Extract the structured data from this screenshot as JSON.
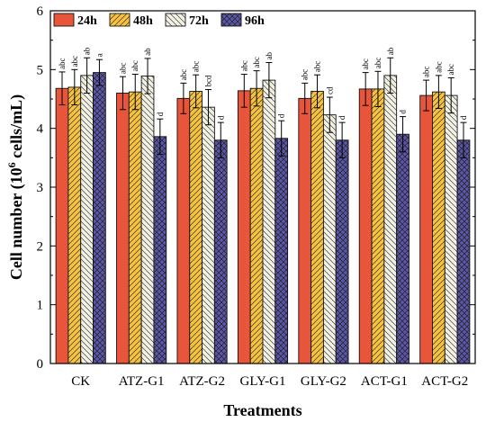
{
  "chart_data": {
    "type": "bar",
    "title": "",
    "xlabel": "Treatments",
    "ylabel_main": "Cell number (10",
    "ylabel_sup": "6",
    "ylabel_tail": " cells/mL)",
    "ylim": [
      0,
      6
    ],
    "yticks": [
      "0",
      "1",
      "2",
      "3",
      "4",
      "5",
      "6"
    ],
    "categories": [
      "CK",
      "ATZ-G1",
      "ATZ-G2",
      "GLY-G1",
      "GLY-G2",
      "ACT-G1",
      "ACT-G2"
    ],
    "legend_position": "top-left",
    "series": [
      {
        "name": "24h",
        "color": "#e8553a",
        "pattern": "solid",
        "values": [
          4.68,
          4.6,
          4.51,
          4.64,
          4.51,
          4.67,
          4.56
        ],
        "errors": [
          0.28,
          0.28,
          0.26,
          0.28,
          0.26,
          0.28,
          0.26
        ],
        "labels": [
          "abc",
          "abc",
          "abc",
          "abc",
          "abc",
          "abc",
          "abc"
        ]
      },
      {
        "name": "48h",
        "color": "#f7c33e",
        "pattern": "hatch-right",
        "values": [
          4.7,
          4.62,
          4.63,
          4.68,
          4.63,
          4.67,
          4.62
        ],
        "errors": [
          0.3,
          0.3,
          0.28,
          0.3,
          0.28,
          0.3,
          0.28
        ],
        "labels": [
          "abc",
          "abc",
          "abc",
          "abc",
          "abc",
          "abc",
          "abc"
        ]
      },
      {
        "name": "72h",
        "color": "#f3f1e4",
        "pattern": "hatch-left",
        "values": [
          4.9,
          4.89,
          4.36,
          4.82,
          4.23,
          4.9,
          4.56
        ],
        "errors": [
          0.3,
          0.3,
          0.3,
          0.3,
          0.3,
          0.3,
          0.3
        ],
        "labels": [
          "ab",
          "ab",
          "bcd",
          "ab",
          "cd",
          "ab",
          "abc"
        ]
      },
      {
        "name": "96h",
        "color": "#5a56a9",
        "pattern": "crosshatch",
        "values": [
          4.95,
          3.86,
          3.8,
          3.83,
          3.8,
          3.9,
          3.8
        ],
        "errors": [
          0.22,
          0.3,
          0.3,
          0.3,
          0.3,
          0.3,
          0.3
        ],
        "labels": [
          "a",
          "d",
          "d",
          "d",
          "d",
          "d",
          "d"
        ]
      }
    ]
  }
}
